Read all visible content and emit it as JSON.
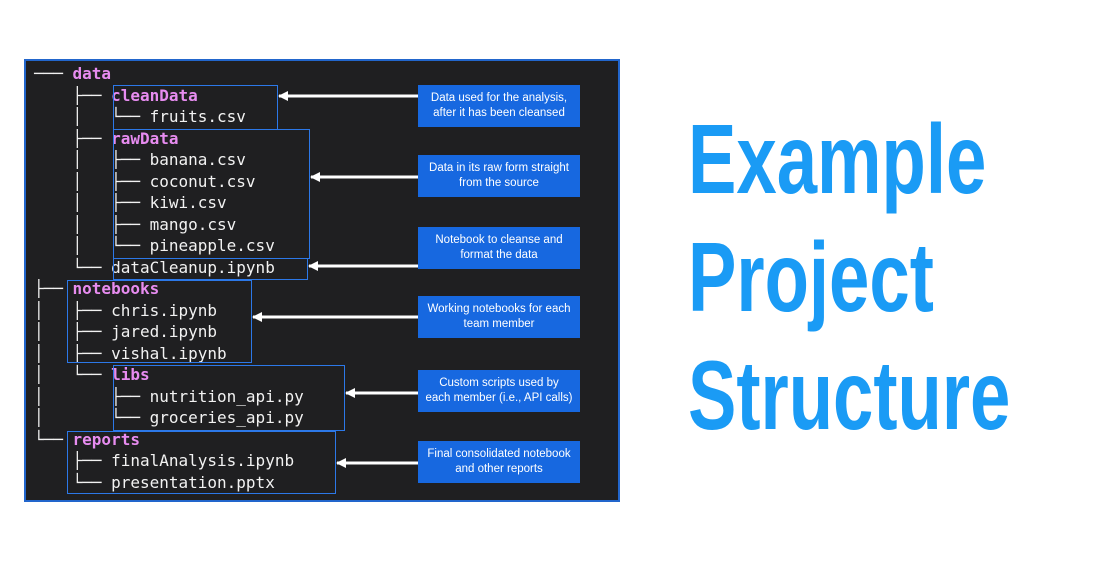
{
  "title": {
    "lines": [
      "Example",
      "Project",
      "Structure"
    ]
  },
  "tree": {
    "lines": [
      {
        "prefix": "─── ",
        "name": "data",
        "dir": true
      },
      {
        "prefix": "    ├── ",
        "name": "cleanData",
        "dir": true
      },
      {
        "prefix": "    │   └── ",
        "name": "fruits.csv",
        "dir": false
      },
      {
        "prefix": "    ├── ",
        "name": "rawData",
        "dir": true
      },
      {
        "prefix": "    │   ├── ",
        "name": "banana.csv",
        "dir": false
      },
      {
        "prefix": "    │   ├── ",
        "name": "coconut.csv",
        "dir": false
      },
      {
        "prefix": "    │   ├── ",
        "name": "kiwi.csv",
        "dir": false
      },
      {
        "prefix": "    │   ├── ",
        "name": "mango.csv",
        "dir": false
      },
      {
        "prefix": "    │   └── ",
        "name": "pineapple.csv",
        "dir": false
      },
      {
        "prefix": "    └── ",
        "name": "dataCleanup.ipynb",
        "dir": false
      },
      {
        "prefix": "├── ",
        "name": "notebooks",
        "dir": true
      },
      {
        "prefix": "│   ├── ",
        "name": "chris.ipynb",
        "dir": false
      },
      {
        "prefix": "│   ├── ",
        "name": "jared.ipynb",
        "dir": false
      },
      {
        "prefix": "│   ├── ",
        "name": "vishal.ipynb",
        "dir": false
      },
      {
        "prefix": "│   └── ",
        "name": "libs",
        "dir": true
      },
      {
        "prefix": "│       ├── ",
        "name": "nutrition_api.py",
        "dir": false
      },
      {
        "prefix": "│       └── ",
        "name": "groceries_api.py",
        "dir": false
      },
      {
        "prefix": "└── ",
        "name": "reports",
        "dir": true
      },
      {
        "prefix": "    ├── ",
        "name": "finalAnalysis.ipynb",
        "dir": false
      },
      {
        "prefix": "    └── ",
        "name": "presentation.pptx",
        "dir": false
      }
    ]
  },
  "callouts": [
    {
      "lines": [
        "Data used for the analysis,",
        "after it has been cleansed"
      ]
    },
    {
      "lines": [
        "Data in its raw form straight",
        "from the source"
      ]
    },
    {
      "lines": [
        "Notebook to cleanse and",
        "format the data"
      ]
    },
    {
      "lines": [
        "Working notebooks for each",
        "team member"
      ]
    },
    {
      "lines": [
        "Custom scripts used by",
        "each member (i.e., API calls)"
      ]
    },
    {
      "lines": [
        "Final consolidated notebook",
        "and other reports"
      ]
    }
  ],
  "colors": {
    "terminal_bg": "#1f1f21",
    "directory_text": "#e78cf0",
    "file_text": "#f2f2f2",
    "highlight_border": "#2c78e8",
    "callout_bg": "#1768e0",
    "title_text": "#1a9bf5"
  }
}
